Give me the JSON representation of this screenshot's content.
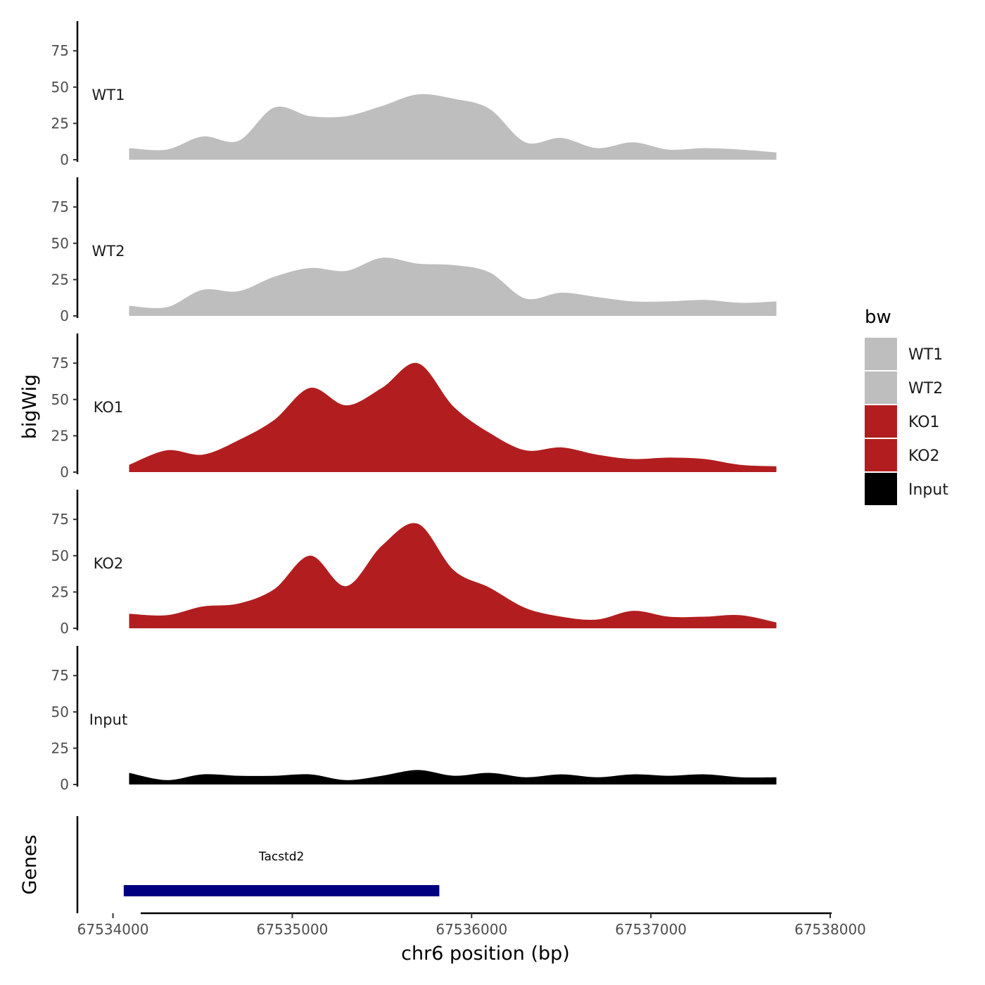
{
  "chart_data": {
    "type": "area",
    "title": "",
    "xlabel": "chr6 position (bp)",
    "ylabel": "bigWig",
    "genes_label": "Genes",
    "xlim": [
      67533880,
      67538000
    ],
    "xticks": [
      67534000,
      67535000,
      67536000,
      67537000,
      67538000
    ],
    "xtick_labels": [
      "67534000",
      "67535000",
      "67536000",
      "67537000",
      "67538000"
    ],
    "ylim": [
      0,
      94
    ],
    "yticks": [
      0,
      25,
      50,
      75
    ],
    "ytick_labels": [
      "0",
      "25",
      "50",
      "75"
    ],
    "grid": false,
    "legend": {
      "title": "bw",
      "placement": "right",
      "entries": [
        {
          "label": "WT1",
          "color": "#bebebe"
        },
        {
          "label": "WT2",
          "color": "#bebebe"
        },
        {
          "label": "KO1",
          "color": "#b21e1f"
        },
        {
          "label": "KO2",
          "color": "#b21e1f"
        },
        {
          "label": "Input",
          "color": "#000000"
        }
      ]
    },
    "x": [
      67534090,
      67534300,
      67534500,
      67534700,
      67534900,
      67535100,
      67535300,
      67535500,
      67535700,
      67535900,
      67536100,
      67536300,
      67536500,
      67536700,
      67536900,
      67537100,
      67537300,
      67537500,
      67537700
    ],
    "series": [
      {
        "name": "WT1",
        "color": "#bebebe",
        "values": [
          8,
          7,
          16,
          13,
          36,
          30,
          30,
          37,
          45,
          42,
          35,
          12,
          15,
          8,
          12,
          7,
          8,
          7,
          5
        ]
      },
      {
        "name": "WT2",
        "color": "#bebebe",
        "values": [
          7,
          6,
          18,
          17,
          27,
          33,
          31,
          40,
          36,
          35,
          30,
          12,
          16,
          13,
          10,
          10,
          11,
          9,
          10
        ]
      },
      {
        "name": "KO1",
        "color": "#b21e1f",
        "values": [
          5,
          15,
          12,
          22,
          36,
          58,
          46,
          58,
          75,
          45,
          27,
          15,
          17,
          12,
          9,
          10,
          9,
          5,
          4
        ]
      },
      {
        "name": "KO2",
        "color": "#b21e1f",
        "values": [
          10,
          9,
          15,
          17,
          27,
          50,
          29,
          57,
          72,
          40,
          28,
          14,
          8,
          6,
          12,
          8,
          8,
          9,
          4
        ]
      },
      {
        "name": "Input",
        "color": "#000000",
        "values": [
          8,
          3,
          7,
          6,
          6,
          7,
          3,
          6,
          10,
          6,
          8,
          5,
          7,
          5,
          7,
          6,
          7,
          5,
          5
        ]
      }
    ],
    "genes": [
      {
        "name": "Tacstd2",
        "start": 67534060,
        "end": 67535820,
        "color": "#000080"
      }
    ]
  }
}
